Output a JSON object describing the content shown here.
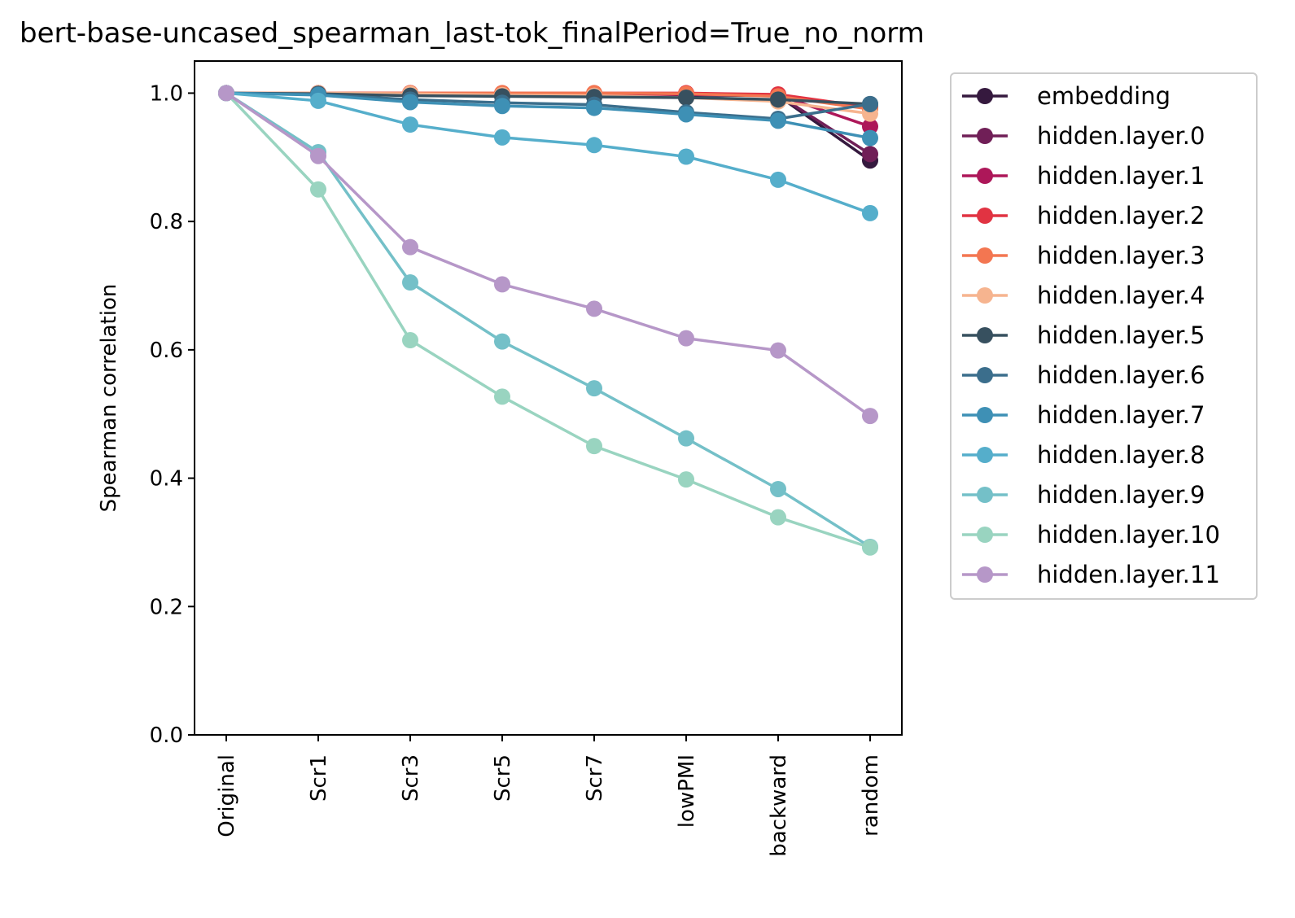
{
  "chart_data": {
    "type": "line",
    "title": "bert-base-uncased_spearman_last-tok_finalPeriod=True_no_norm",
    "xlabel": "",
    "ylabel": "Spearman correlation",
    "categories": [
      "Original",
      "Scr1",
      "Scr3",
      "Scr5",
      "Scr7",
      "lowPMI",
      "backward",
      "random"
    ],
    "ylim": [
      0,
      1.05
    ],
    "yticks": [
      "0.0",
      "0.2",
      "0.4",
      "0.6",
      "0.8",
      "1.0"
    ],
    "grid": false,
    "legend_position": "outside-right",
    "series": [
      {
        "name": "embedding",
        "color": "#35193e",
        "values": [
          1.0,
          1.0,
          0.999,
          0.998,
          0.998,
          0.997,
          0.996,
          0.895
        ]
      },
      {
        "name": "hidden.layer.0",
        "color": "#701f57",
        "values": [
          1.0,
          1.0,
          0.999,
          0.999,
          0.999,
          0.998,
          0.997,
          0.905
        ]
      },
      {
        "name": "hidden.layer.1",
        "color": "#ad1759",
        "values": [
          1.0,
          1.0,
          1.0,
          0.999,
          0.999,
          0.998,
          0.997,
          0.948
        ]
      },
      {
        "name": "hidden.layer.2",
        "color": "#e13342",
        "values": [
          1.0,
          1.0,
          1.0,
          1.0,
          1.0,
          1.0,
          0.998,
          0.978
        ]
      },
      {
        "name": "hidden.layer.3",
        "color": "#f37651",
        "values": [
          1.0,
          1.0,
          1.0,
          1.0,
          1.0,
          0.999,
          0.995,
          0.975
        ]
      },
      {
        "name": "hidden.layer.4",
        "color": "#f6b48f",
        "values": [
          1.0,
          1.0,
          0.999,
          0.997,
          0.996,
          0.993,
          0.987,
          0.968
        ]
      },
      {
        "name": "hidden.layer.5",
        "color": "#37505f",
        "values": [
          1.0,
          0.999,
          0.996,
          0.995,
          0.994,
          0.993,
          0.99,
          0.983
        ]
      },
      {
        "name": "hidden.layer.6",
        "color": "#3b6e8c",
        "values": [
          1.0,
          0.998,
          0.99,
          0.985,
          0.982,
          0.97,
          0.96,
          0.983
        ]
      },
      {
        "name": "hidden.layer.7",
        "color": "#3e90b5",
        "values": [
          1.0,
          0.997,
          0.986,
          0.98,
          0.977,
          0.967,
          0.957,
          0.93
        ]
      },
      {
        "name": "hidden.layer.8",
        "color": "#55aecb",
        "values": [
          1.0,
          0.988,
          0.951,
          0.931,
          0.919,
          0.901,
          0.865,
          0.813
        ]
      },
      {
        "name": "hidden.layer.9",
        "color": "#74c0c8",
        "values": [
          1.0,
          0.908,
          0.705,
          0.613,
          0.54,
          0.462,
          0.383,
          0.293
        ]
      },
      {
        "name": "hidden.layer.10",
        "color": "#99d4c0",
        "values": [
          1.0,
          0.85,
          0.615,
          0.527,
          0.45,
          0.398,
          0.339,
          0.292
        ]
      },
      {
        "name": "hidden.layer.11",
        "color": "#b697c8",
        "values": [
          1.0,
          0.902,
          0.76,
          0.702,
          0.664,
          0.618,
          0.599,
          0.497
        ]
      }
    ]
  }
}
